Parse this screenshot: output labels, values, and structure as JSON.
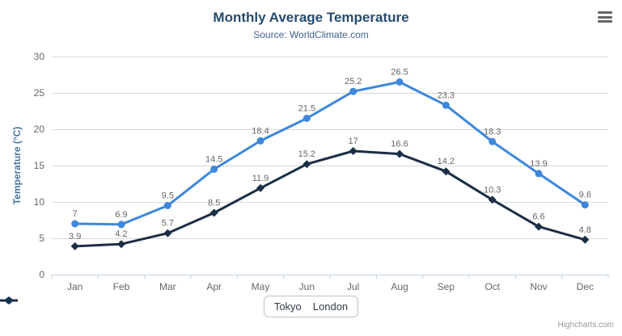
{
  "header": {
    "title": "Monthly Average Temperature",
    "subtitle": "Source: WorldClimate.com"
  },
  "menu": {
    "icon": "hamburger-icon"
  },
  "colors": {
    "tokyo": "#3e87dc",
    "london": "#1c2e45",
    "title": "#274b6d",
    "subtitle": "#44618c",
    "axis_label": "#666666",
    "axis_title": "#4a74a0",
    "data_label": "#666666",
    "gridline": "#d8d8d8",
    "axis_line": "#c0d0e0",
    "legend_border": "#c0c0c0",
    "credits": "#999999"
  },
  "chart_data": {
    "type": "line",
    "title": "Monthly Average Temperature",
    "subtitle": "Source: WorldClimate.com",
    "categories": [
      "Jan",
      "Feb",
      "Mar",
      "Apr",
      "May",
      "Jun",
      "Jul",
      "Aug",
      "Sep",
      "Oct",
      "Nov",
      "Dec"
    ],
    "series": [
      {
        "name": "Tokyo",
        "color": "#3e87dc",
        "marker": "circle",
        "values": [
          7,
          6.9,
          9.5,
          14.5,
          18.4,
          21.5,
          25.2,
          26.5,
          23.3,
          18.3,
          13.9,
          9.6
        ]
      },
      {
        "name": "London",
        "color": "#1c2e45",
        "marker": "diamond",
        "values": [
          3.9,
          4.2,
          5.7,
          8.5,
          11.9,
          15.2,
          17,
          16.6,
          14.2,
          10.3,
          6.6,
          4.8
        ]
      }
    ],
    "xlabel": "",
    "ylabel": "Temperature (°C)",
    "ylim": [
      0,
      30
    ],
    "yticks": [
      0,
      5,
      10,
      15,
      20,
      25,
      30
    ],
    "grid": "horizontal",
    "legend_position": "bottom-center",
    "data_labels": true
  },
  "legend": {
    "items": [
      {
        "label": "Tokyo"
      },
      {
        "label": "London"
      }
    ]
  },
  "credits": {
    "label": "Highcharts.com"
  }
}
